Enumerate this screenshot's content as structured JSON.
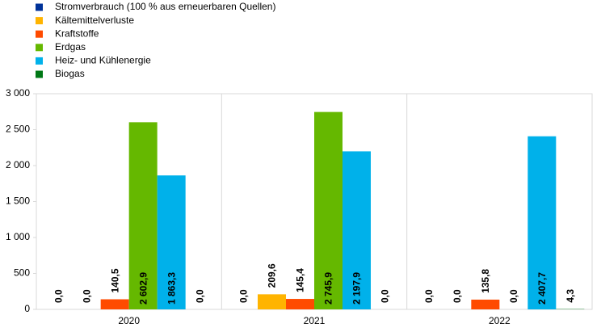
{
  "chart_data": {
    "type": "bar",
    "categories": [
      "2020",
      "2021",
      "2022"
    ],
    "series": [
      {
        "name": "Stromverbrauch (100 % aus erneuerbaren Quellen)",
        "color": "#003299",
        "values": [
          0,
          0,
          0
        ],
        "value_labels": [
          "0,0",
          "0,0",
          "0,0"
        ]
      },
      {
        "name": "Kältemittelverluste",
        "color": "#FFB400",
        "values": [
          0,
          209.6,
          0
        ],
        "value_labels": [
          "0,0",
          "209,6",
          "0,0"
        ]
      },
      {
        "name": "Kraftstoffe",
        "color": "#FF4B00",
        "values": [
          140.5,
          145.4,
          135.8
        ],
        "value_labels": [
          "140,5",
          "145,4",
          "135,8"
        ]
      },
      {
        "name": "Erdgas",
        "color": "#65B800",
        "values": [
          2602.9,
          2745.9,
          0
        ],
        "value_labels": [
          "2 602,9",
          "2 745,9",
          "0,0"
        ]
      },
      {
        "name": "Heiz- und Kühlenergie",
        "color": "#00B1EA",
        "values": [
          1863.3,
          2197.9,
          2407.7
        ],
        "value_labels": [
          "1 863,3",
          "2 197,9",
          "2 407,7"
        ]
      },
      {
        "name": "Biogas",
        "color": "#007816",
        "values": [
          0,
          0,
          4.3
        ],
        "value_labels": [
          "0,0",
          "0,0",
          "4,3"
        ]
      }
    ],
    "ylim": [
      0,
      3000
    ],
    "yticks": [
      0,
      500,
      {
        "value": 1000,
        "label": "1 000"
      },
      {
        "value": 1500,
        "label": "1 500"
      },
      {
        "value": 2000,
        "label": "2 000"
      },
      {
        "value": 2500,
        "label": "2 500"
      },
      {
        "value": 3000,
        "label": "3 000"
      }
    ],
    "legend": "top-left"
  }
}
